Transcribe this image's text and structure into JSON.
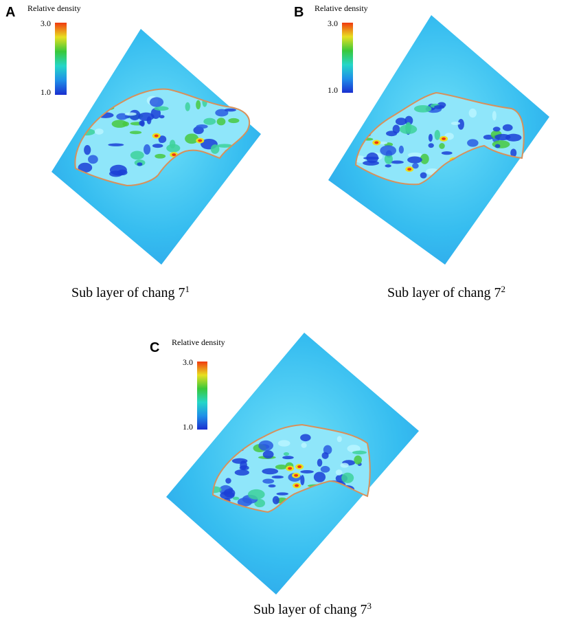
{
  "panels": [
    {
      "label": "A",
      "colorbar": {
        "title": "Relative density",
        "max": "3.0",
        "min": "1.0"
      },
      "caption": {
        "text": "Sub layer of chang 7",
        "superscript": "1"
      }
    },
    {
      "label": "B",
      "colorbar": {
        "title": "Relative density",
        "max": "3.0",
        "min": "1.0"
      },
      "caption": {
        "text": "Sub layer of chang 7",
        "superscript": "2"
      }
    },
    {
      "label": "C",
      "colorbar": {
        "title": "Relative density",
        "max": "3.0",
        "min": "1.0"
      },
      "caption": {
        "text": "Sub layer of chang 7",
        "superscript": "3"
      }
    }
  ]
}
